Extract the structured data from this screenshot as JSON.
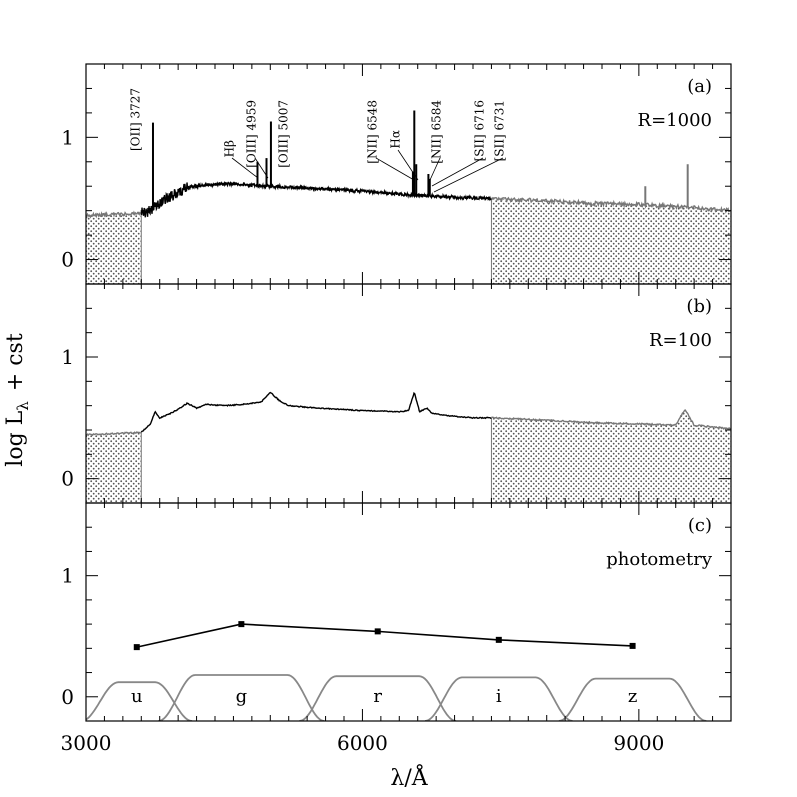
{
  "chart_data": {
    "type": "line",
    "xlabel": "λ/Å",
    "ylabel_main": "log L",
    "ylabel_sub": "λ",
    "ylabel_tail": "+ cst",
    "x_range": [
      3000,
      10000
    ],
    "y_range": [
      -0.2,
      1.6
    ],
    "x_ticks": [
      3000,
      6000,
      9000
    ],
    "x_tick_labels": [
      "3000",
      "6000",
      "9000"
    ],
    "y_ticks": [
      0,
      1
    ],
    "y_tick_labels": [
      "0",
      "1"
    ],
    "colors": {
      "spectrum": "#000000",
      "outside": "#777777",
      "filters": "#888888"
    },
    "panels": [
      {
        "id": "a",
        "label": "(a)",
        "resolution_label": "R=1000",
        "hatch_ranges": [
          [
            3000,
            3600
          ],
          [
            7400,
            10000
          ]
        ],
        "spectrum": {
          "x": [
            3000,
            3300,
            3600,
            3700,
            3800,
            3900,
            4000,
            4100,
            4300,
            4600,
            5000,
            5500,
            6000,
            6500,
            7000,
            7400,
            8000,
            8500,
            9000,
            9500,
            10000
          ],
          "y": [
            0.36,
            0.37,
            0.38,
            0.4,
            0.47,
            0.51,
            0.55,
            0.59,
            0.61,
            0.62,
            0.6,
            0.58,
            0.56,
            0.53,
            0.51,
            0.5,
            0.48,
            0.46,
            0.45,
            0.43,
            0.4
          ]
        },
        "emission_lines": [
          {
            "x": 3727,
            "peak": 1.12,
            "label": "[OII] 3727"
          },
          {
            "x": 4861,
            "peak": 0.8,
            "label": "Hβ"
          },
          {
            "x": 4959,
            "peak": 0.83,
            "label": "[OIII] 4959"
          },
          {
            "x": 5007,
            "peak": 1.13,
            "label": "[OIII] 5007"
          },
          {
            "x": 6548,
            "peak": 0.72,
            "label": "[NII] 6548"
          },
          {
            "x": 6563,
            "peak": 1.22,
            "label": "Hα"
          },
          {
            "x": 6584,
            "peak": 0.78,
            "label": "[NII] 6584"
          },
          {
            "x": 6716,
            "peak": 0.7,
            "label": "[SII] 6716"
          },
          {
            "x": 6731,
            "peak": 0.66,
            "label": "[SII] 6731"
          },
          {
            "x": 9070,
            "peak": 0.6,
            "label": ""
          },
          {
            "x": 9530,
            "peak": 0.78,
            "label": ""
          }
        ]
      },
      {
        "id": "b",
        "label": "(b)",
        "resolution_label": "R=100",
        "hatch_ranges": [
          [
            3000,
            3600
          ],
          [
            7400,
            10000
          ]
        ],
        "spectrum": {
          "x": [
            3000,
            3300,
            3600,
            3700,
            3750,
            3800,
            3900,
            4000,
            4100,
            4200,
            4300,
            4500,
            4700,
            4900,
            5000,
            5100,
            5200,
            5500,
            6000,
            6400,
            6500,
            6563,
            6620,
            6700,
            6750,
            6900,
            7200,
            7400,
            8000,
            8500,
            9000,
            9400,
            9500,
            9600,
            10000
          ],
          "y": [
            0.36,
            0.37,
            0.38,
            0.45,
            0.55,
            0.5,
            0.53,
            0.57,
            0.62,
            0.58,
            0.61,
            0.6,
            0.61,
            0.63,
            0.71,
            0.64,
            0.6,
            0.58,
            0.56,
            0.55,
            0.56,
            0.71,
            0.55,
            0.58,
            0.54,
            0.52,
            0.5,
            0.5,
            0.48,
            0.46,
            0.45,
            0.44,
            0.57,
            0.44,
            0.41
          ]
        },
        "emission_lines": []
      },
      {
        "id": "c",
        "label": "(c)",
        "resolution_label": "photometry",
        "hatch_ranges": [],
        "photometry": {
          "x": [
            3551,
            4686,
            6166,
            7480,
            8932
          ],
          "y": [
            0.41,
            0.6,
            0.54,
            0.47,
            0.42
          ]
        },
        "filters": [
          {
            "name": "u",
            "center": 3551
          },
          {
            "name": "g",
            "center": 4686
          },
          {
            "name": "r",
            "center": 6166
          },
          {
            "name": "i",
            "center": 7480
          },
          {
            "name": "z",
            "center": 8932
          }
        ]
      }
    ]
  }
}
